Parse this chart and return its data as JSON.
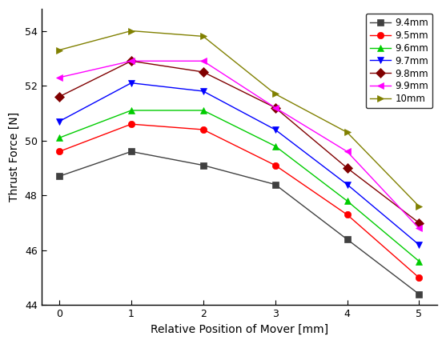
{
  "x": [
    0,
    1,
    2,
    3,
    4,
    5
  ],
  "series": [
    {
      "label": "9.4mm",
      "color": "#404040",
      "marker": "s",
      "values": [
        48.7,
        49.6,
        49.1,
        48.4,
        46.4,
        44.4
      ]
    },
    {
      "label": "9.5mm",
      "color": "#ff0000",
      "marker": "o",
      "values": [
        49.6,
        50.6,
        50.4,
        49.1,
        47.3,
        45.0
      ]
    },
    {
      "label": "9.6mm",
      "color": "#00cc00",
      "marker": "^",
      "values": [
        50.1,
        51.1,
        51.1,
        49.8,
        47.8,
        45.6
      ]
    },
    {
      "label": "9.7mm",
      "color": "#0000ff",
      "marker": "v",
      "values": [
        50.7,
        52.1,
        51.8,
        50.4,
        48.4,
        46.2
      ]
    },
    {
      "label": "9.8mm",
      "color": "#800000",
      "marker": "D",
      "values": [
        51.6,
        52.9,
        52.5,
        51.2,
        49.0,
        47.0
      ]
    },
    {
      "label": "9.9mm",
      "color": "#ff00ff",
      "marker": "<",
      "values": [
        52.3,
        52.9,
        52.9,
        51.2,
        49.6,
        46.8
      ]
    },
    {
      "label": "10mm",
      "color": "#808000",
      "marker": ">",
      "values": [
        53.3,
        54.0,
        53.8,
        51.7,
        50.3,
        47.6
      ]
    }
  ],
  "xlabel": "Relative Position of Mover [mm]",
  "ylabel": "Thrust Force [N]",
  "xlim": [
    -0.25,
    5.25
  ],
  "ylim": [
    44.0,
    54.8
  ],
  "yticks": [
    44,
    46,
    48,
    50,
    52,
    54
  ],
  "xticks": [
    0,
    1,
    2,
    3,
    4,
    5
  ],
  "legend_loc": "upper right",
  "figsize": [
    5.57,
    4.3
  ],
  "dpi": 100
}
